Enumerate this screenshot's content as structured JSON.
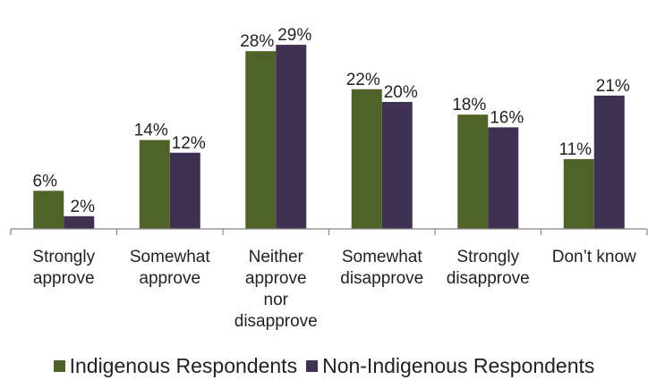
{
  "chart_data": {
    "type": "bar",
    "title": "",
    "xlabel": "",
    "ylabel": "",
    "ylim": [
      0,
      30
    ],
    "grid": false,
    "legend_position": "bottom",
    "categories": [
      [
        "Strongly",
        "approve"
      ],
      [
        "Somewhat",
        "approve"
      ],
      [
        "Neither",
        "approve",
        "nor",
        "disapprove"
      ],
      [
        "Somewhat",
        "disapprove"
      ],
      [
        "Strongly",
        "disapprove"
      ],
      [
        "Don’t know"
      ]
    ],
    "series": [
      {
        "name": "Indigenous Respondents",
        "color": "#4f6228",
        "values": [
          6,
          14,
          28,
          22,
          18,
          11
        ],
        "labels": [
          "6%",
          "14%",
          "28%",
          "22%",
          "18%",
          "11%"
        ]
      },
      {
        "name": "Non-Indigenous Respondents",
        "color": "#3f3151",
        "values": [
          2,
          12,
          29,
          20,
          16,
          21
        ],
        "labels": [
          "2%",
          "12%",
          "29%",
          "20%",
          "16%",
          "21%"
        ]
      }
    ]
  }
}
